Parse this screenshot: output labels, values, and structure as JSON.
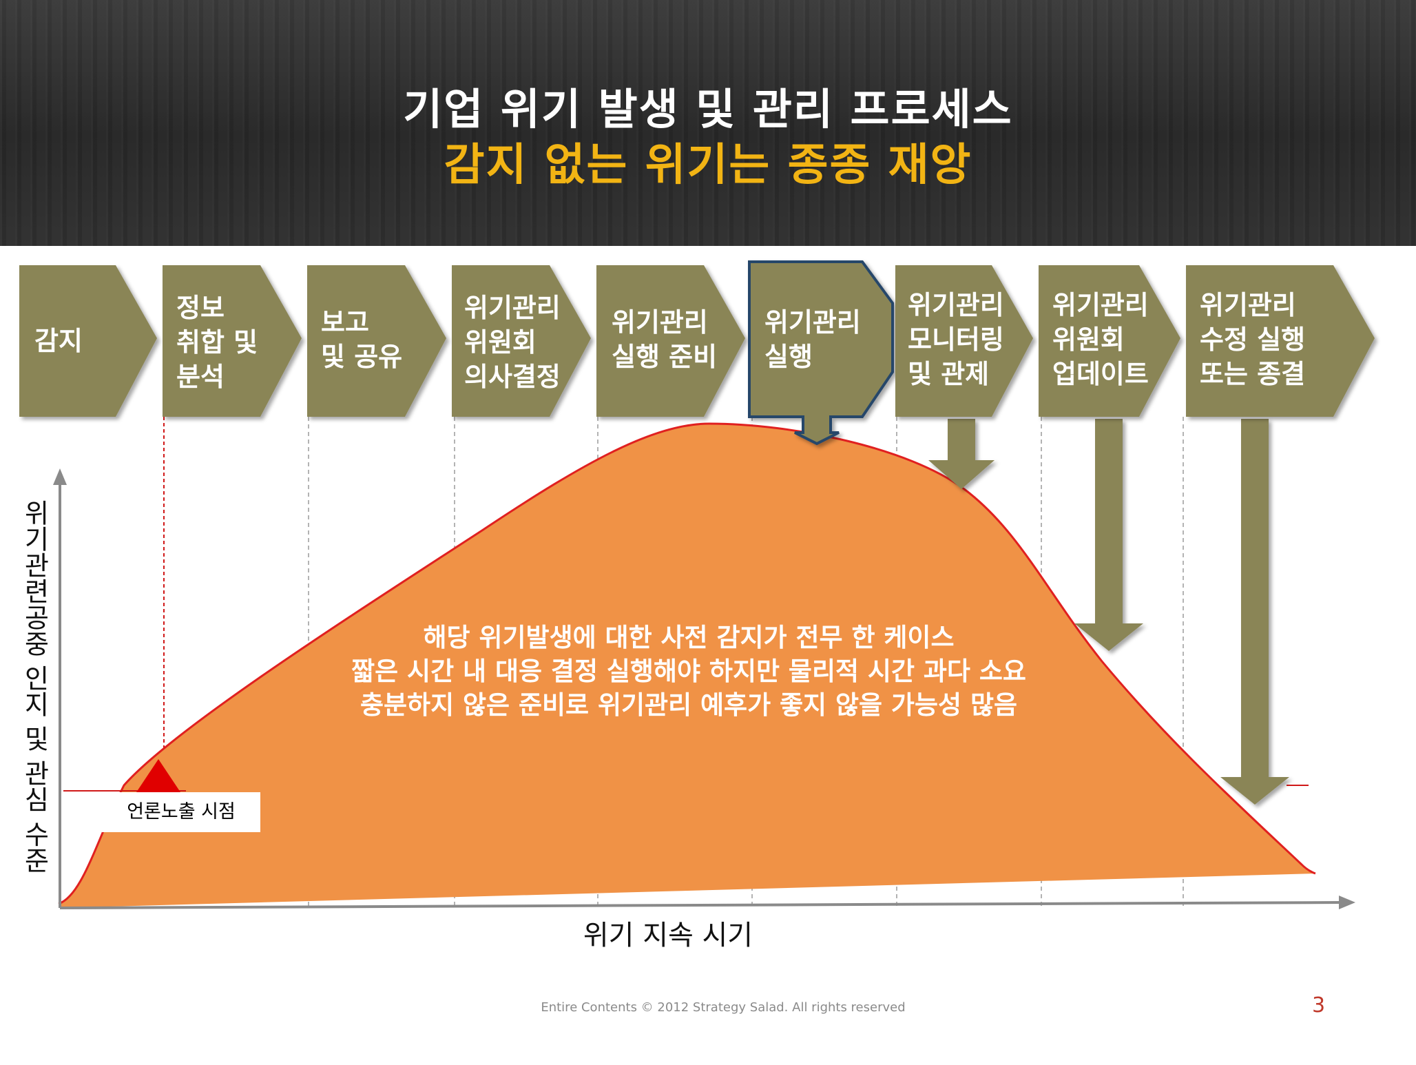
{
  "title": {
    "line1": "기업 위기 발생 및 관리 프로세스",
    "line2": "감지 없는 위기는 종종 재앙"
  },
  "process_steps": [
    {
      "label": "감지"
    },
    {
      "label": "정보\n취합 및\n분석"
    },
    {
      "label": "보고\n및 공유"
    },
    {
      "label": "위기관리\n위원회\n의사결정"
    },
    {
      "label": "위기관리\n실행 준비"
    },
    {
      "label": "위기관리\n실행",
      "highlighted": true
    },
    {
      "label": "위기관리\n모니터링\n및 관제"
    },
    {
      "label": "위기관리\n위원회\n업데이트"
    },
    {
      "label": "위기관리\n수정 실행\n또는 종결"
    }
  ],
  "description": [
    "해당 위기발생에 대한 사전 감지가 전무 한 케이스",
    "짧은 시간 내 대응 결정 실행해야 하지만 물리적 시간 과다 소요",
    "충분하지 않은 준비로 위기관리 예후가 좋지 않을 가능성 많음"
  ],
  "marker": {
    "label": "언론노출 시점"
  },
  "axes": {
    "y_label": "위기관련공중 인지 및 관심 수준",
    "x_label": "위기 지속 시기"
  },
  "footer": {
    "copyright": "Entire Contents © 2012 Strategy Salad. All rights reserved",
    "page": "3"
  },
  "colors": {
    "step_fill": "#8a8556",
    "curve_fill": "#f09246",
    "curve_line": "#e02020",
    "title_accent": "#f2b414",
    "arrow_fill": "#8a8556",
    "highlight_border": "#27466b"
  }
}
